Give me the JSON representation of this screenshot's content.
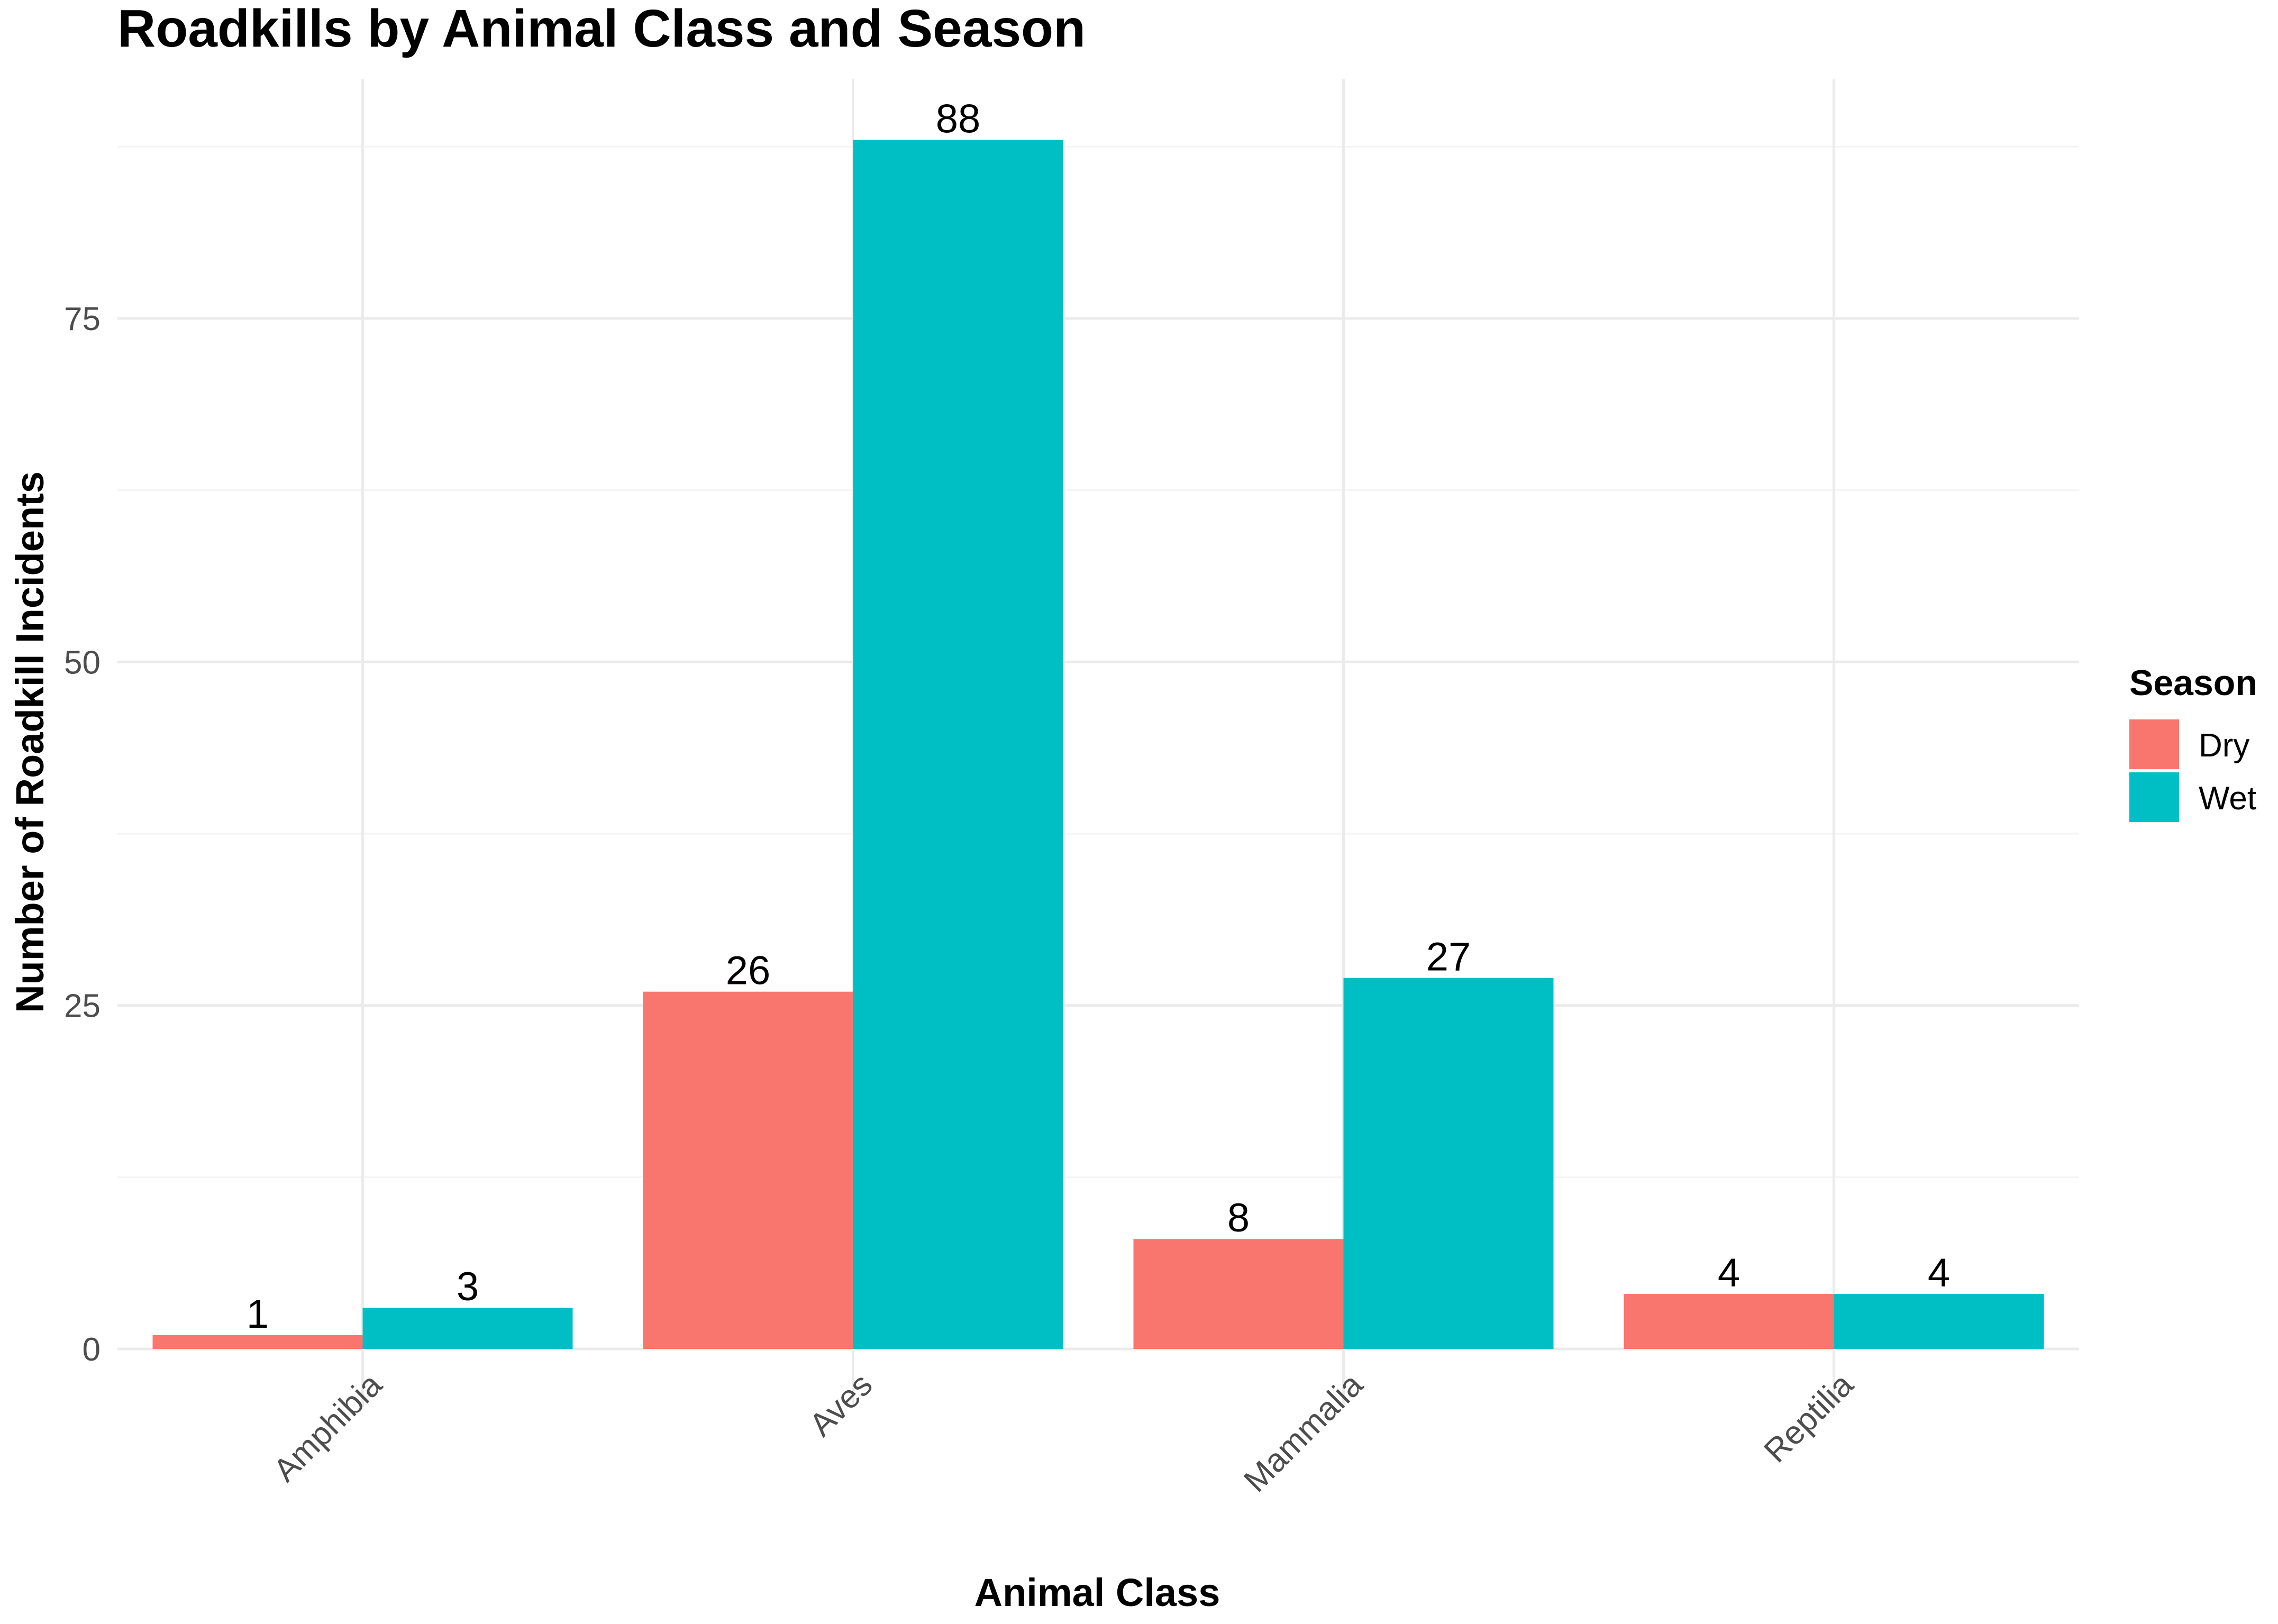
{
  "chart_data": {
    "type": "bar",
    "title": "Roadkills by Animal Class and Season",
    "xlabel": "Animal Class",
    "ylabel": "Number of Roadkill Incidents",
    "categories": [
      "Amphibia",
      "Aves",
      "Mammalia",
      "Reptilia"
    ],
    "series": [
      {
        "name": "Dry",
        "color": "#F8766D",
        "values": [
          1,
          26,
          8,
          4
        ]
      },
      {
        "name": "Wet",
        "color": "#00BFC4",
        "values": [
          3,
          88,
          27,
          4
        ]
      }
    ],
    "ylim": [
      0,
      92.4
    ],
    "yticks": [
      "0",
      "25",
      "50",
      "75"
    ],
    "ytick_values": [
      0,
      25,
      50,
      75
    ],
    "grid": true,
    "legend": {
      "title": "Season",
      "position": "right"
    }
  }
}
